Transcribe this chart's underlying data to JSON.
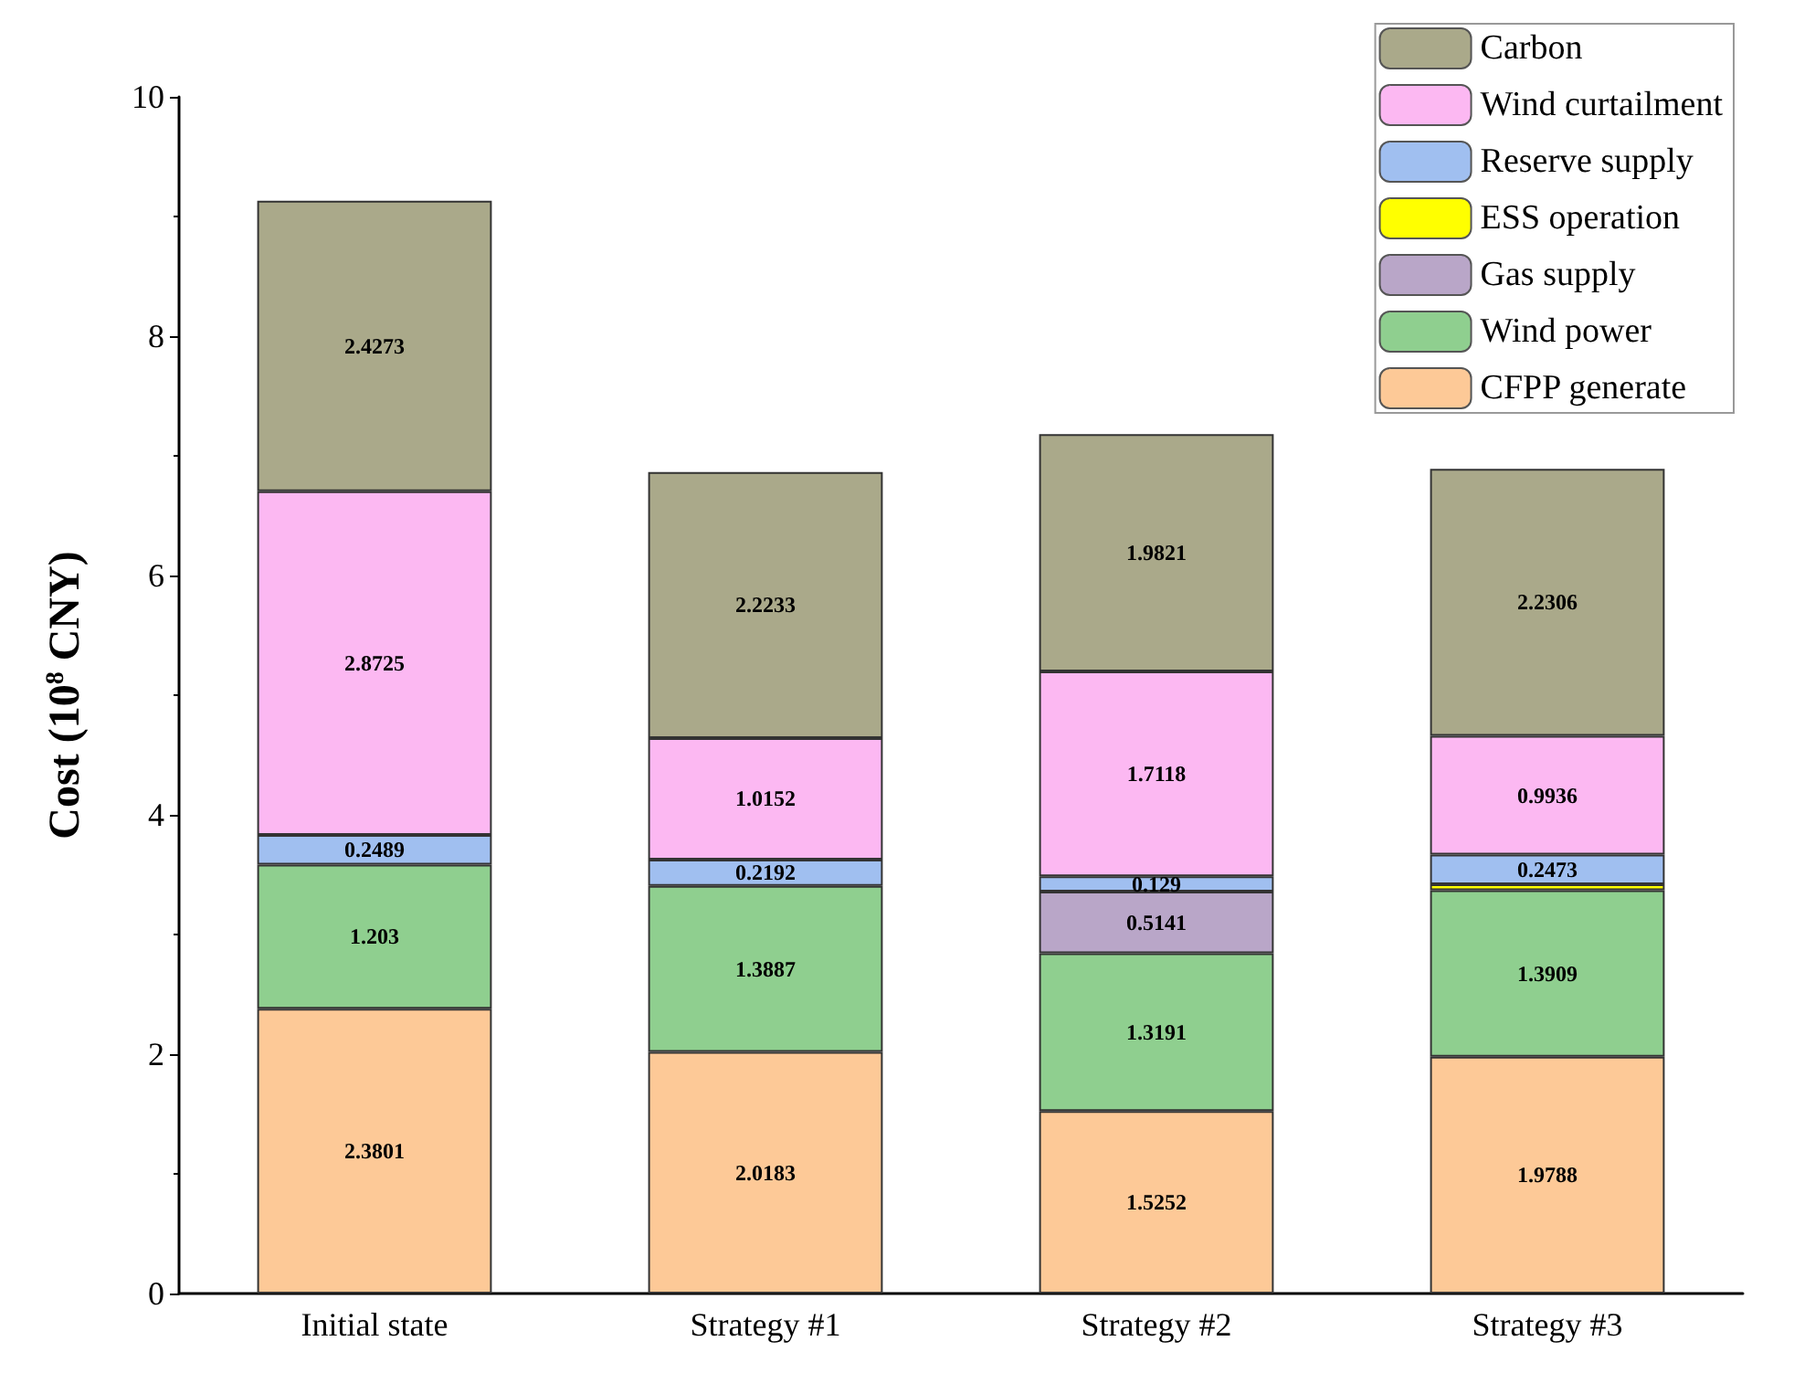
{
  "chart_data": {
    "type": "bar",
    "stacked": true,
    "ylabel": "Cost (10$^{8}$ CNY)",
    "categories": [
      "Initial state",
      "Strategy #1",
      "Strategy #2",
      "Strategy #3"
    ],
    "ylim": [
      0,
      10
    ],
    "yticks": [
      0,
      2,
      4,
      6,
      8,
      10
    ],
    "grid": false,
    "legend": "top right",
    "series": [
      {
        "name": "CFPP generate",
        "color": "#fdc997",
        "values": [
          2.3801,
          2.0183,
          1.5252,
          1.9788
        ],
        "value_labels": [
          "2.3801",
          "2.0183",
          "1.5252",
          "1.9788"
        ]
      },
      {
        "name": "Wind power",
        "color": "#8fcf8f",
        "values": [
          1.203,
          1.3887,
          1.3191,
          1.3909
        ],
        "value_labels": [
          "1.203",
          "1.3887",
          "1.3191",
          "1.3909"
        ]
      },
      {
        "name": "Gas supply",
        "color": "#b9a6c8",
        "values": [
          null,
          null,
          0.5141,
          null
        ],
        "value_labels": [
          null,
          null,
          "0.5141",
          null
        ]
      },
      {
        "name": "ESS operation",
        "color": "#ffff00",
        "values": [
          null,
          null,
          null,
          0.05
        ],
        "value_labels": [
          null,
          null,
          null,
          null
        ]
      },
      {
        "name": "Reserve supply",
        "color": "#a0bff0",
        "values": [
          0.2489,
          0.2192,
          0.129,
          0.2473
        ],
        "value_labels": [
          "0.2489",
          "0.2192",
          "0.129",
          "0.2473"
        ]
      },
      {
        "name": "Wind curtailment",
        "color": "#fcb8f2",
        "values": [
          2.8725,
          1.0152,
          1.7118,
          0.9936
        ],
        "value_labels": [
          "2.8725",
          "1.0152",
          "1.7118",
          "0.9936"
        ]
      },
      {
        "name": "Carbon",
        "color": "#aaa98a",
        "values": [
          2.4273,
          2.2233,
          1.9821,
          2.2306
        ],
        "value_labels": [
          "2.4273",
          "2.2233",
          "1.9821",
          "2.2306"
        ]
      }
    ]
  }
}
